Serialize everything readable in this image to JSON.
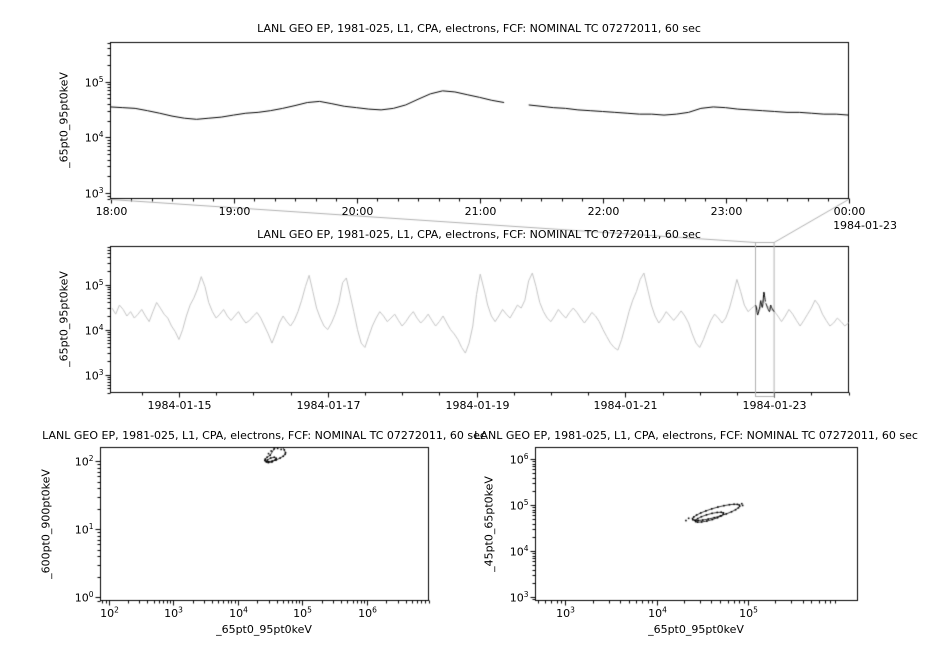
{
  "app": {
    "background": "#ffffff"
  },
  "colors": {
    "axis": "#000000",
    "text": "#000000",
    "zoom_line": "#000000",
    "context_line": "#c4c4c4",
    "connector": "#b0b0b0"
  },
  "chart_data": [
    {
      "id": "zoom-timeseries",
      "type": "line",
      "title": "LANL GEO EP, 1981-025, L1, CPA, electrons, FCF: NOMINAL TC 07272011, 60 sec",
      "ylabel": "_65pt0_95pt0keV",
      "x_axis_date": "1984-01-23",
      "xscale": "linear",
      "yscale": "log",
      "xlim": [
        18,
        24
      ],
      "ylim": [
        800,
        500000
      ],
      "xticks": [
        18,
        19,
        20,
        21,
        22,
        23,
        24
      ],
      "xtick_labels": [
        "18:00",
        "19:00",
        "20:00",
        "21:00",
        "22:00",
        "23:00",
        "00:00"
      ],
      "x_minor_step": 0.16666667,
      "yticks": [
        1000,
        10000,
        100000
      ],
      "line_color": "#000000",
      "x_units": "hour of day, 1984-01-22 18:00 to 1984-01-23 00:00",
      "x_start": 18,
      "x_step": 0.1,
      "values": [
        35000,
        34000,
        33000,
        30000,
        27000,
        24000,
        22000,
        21000,
        22000,
        23000,
        25000,
        27000,
        28000,
        30000,
        33000,
        37000,
        42000,
        44000,
        40000,
        36000,
        34000,
        32000,
        31000,
        33000,
        38000,
        48000,
        60000,
        68000,
        65000,
        58000,
        52000,
        46000,
        42000,
        null,
        38000,
        36000,
        34000,
        33000,
        31000,
        30000,
        29000,
        28000,
        27000,
        26000,
        26000,
        25000,
        26000,
        28000,
        33000,
        35000,
        34000,
        32000,
        31000,
        30000,
        29000,
        28000,
        28000,
        27000,
        26000,
        26000,
        25000
      ]
    },
    {
      "id": "context-timeseries",
      "type": "line",
      "title": "LANL GEO EP, 1981-025, L1, CPA, electrons, FCF: NOMINAL TC 07272011, 60 sec",
      "ylabel": "_65pt0_95pt0keV",
      "xscale": "linear",
      "yscale": "log",
      "xlim": [
        14.08,
        24.0
      ],
      "ylim": [
        400,
        700000
      ],
      "xticks": [
        15,
        17,
        19,
        21,
        23
      ],
      "xtick_labels": [
        "1984-01-15",
        "1984-01-17",
        "1984-01-19",
        "1984-01-21",
        "1984-01-23"
      ],
      "x_minor_step": 0.5,
      "yticks": [
        1000,
        10000,
        100000
      ],
      "line_color": "#c4c4c4",
      "x_units": "day of January 1984",
      "x_start": 14.1,
      "x_step": 0.05,
      "values": [
        30000,
        22000,
        35000,
        28000,
        20000,
        25000,
        18000,
        22000,
        28000,
        20000,
        15000,
        25000,
        40000,
        30000,
        22000,
        18000,
        12000,
        9000,
        6000,
        10000,
        20000,
        35000,
        50000,
        80000,
        150000,
        90000,
        40000,
        25000,
        18000,
        22000,
        28000,
        20000,
        16000,
        20000,
        25000,
        18000,
        14000,
        16000,
        20000,
        24000,
        18000,
        12000,
        8000,
        5000,
        8000,
        14000,
        20000,
        15000,
        12000,
        16000,
        25000,
        45000,
        90000,
        160000,
        70000,
        30000,
        18000,
        12000,
        10000,
        14000,
        22000,
        40000,
        110000,
        140000,
        60000,
        25000,
        10000,
        5000,
        4000,
        7000,
        12000,
        18000,
        25000,
        20000,
        15000,
        18000,
        22000,
        16000,
        12000,
        15000,
        20000,
        25000,
        18000,
        14000,
        17000,
        22000,
        16000,
        12000,
        15000,
        20000,
        14000,
        10000,
        8000,
        6000,
        4000,
        3000,
        5000,
        12000,
        60000,
        170000,
        80000,
        35000,
        20000,
        15000,
        20000,
        28000,
        22000,
        18000,
        25000,
        35000,
        30000,
        45000,
        120000,
        180000,
        90000,
        40000,
        25000,
        18000,
        15000,
        20000,
        28000,
        22000,
        18000,
        24000,
        30000,
        24000,
        18000,
        14000,
        18000,
        24000,
        20000,
        15000,
        10000,
        7000,
        5000,
        4000,
        3500,
        6000,
        12000,
        25000,
        45000,
        70000,
        130000,
        180000,
        80000,
        35000,
        20000,
        14000,
        18000,
        25000,
        20000,
        16000,
        20000,
        26000,
        20000,
        14000,
        8000,
        5000,
        4000,
        6000,
        10000,
        16000,
        22000,
        18000,
        14000,
        18000,
        30000,
        60000,
        130000,
        70000,
        35000,
        25000,
        30000,
        35000,
        25000,
        45000,
        35000,
        28000,
        26000,
        20000,
        15000,
        20000,
        28000,
        22000,
        16000,
        12000,
        16000,
        22000,
        30000,
        45000,
        35000,
        22000,
        16000,
        12000,
        14000,
        18000,
        15000,
        12000,
        14000,
        16000,
        13000
      ],
      "highlight": {
        "color": "#000000",
        "day_start": 22.75,
        "day_end": 23.0,
        "source": "zoom-timeseries values"
      },
      "selection_box": {
        "x0": 22.75,
        "x1": 23.0,
        "color": "#b0b0b0"
      }
    },
    {
      "id": "scatter-600-900",
      "type": "scatter",
      "title": "LANL GEO EP, 1981-025, L1, CPA, electrons, FCF: NOMINAL TC 07272011, 60 sec",
      "xlabel": "_65pt0_95pt0keV",
      "ylabel": "_600pt0_900pt0keV",
      "xscale": "log",
      "yscale": "log",
      "xlim": [
        75,
        9000000
      ],
      "ylim": [
        0.9,
        160
      ],
      "xticks": [
        100,
        1000,
        10000,
        100000,
        1000000
      ],
      "yticks": [
        1,
        10,
        100
      ],
      "marker_color": "#000000",
      "point_groups": [
        [
          [
            55000,
            134
          ],
          [
            52600,
            148
          ],
          [
            48000,
            166
          ],
          [
            42200,
            170
          ],
          [
            36500,
            152
          ],
          [
            31800,
            123
          ],
          [
            28500,
            115
          ],
          [
            26700,
            108
          ],
          [
            26300,
            103
          ],
          [
            27500,
            100
          ],
          [
            30100,
            99
          ],
          [
            34200,
            101
          ],
          [
            39500,
            105
          ],
          [
            45400,
            112
          ],
          [
            50700,
            119
          ],
          [
            54200,
            127
          ]
        ],
        [
          [
            39400,
            111
          ],
          [
            36800,
            115
          ],
          [
            32400,
            112
          ],
          [
            28800,
            105
          ],
          [
            27900,
            98
          ],
          [
            29800,
            96
          ],
          [
            33900,
            98
          ],
          [
            38000,
            105
          ]
        ]
      ],
      "scatter_points": [
        [
          41500,
          155
        ],
        [
          33000,
          142
        ],
        [
          47000,
          150
        ],
        [
          30000,
          130
        ]
      ]
    },
    {
      "id": "scatter-45-65",
      "type": "scatter",
      "title": "LANL GEO EP, 1981-025, L1, CPA, electrons, FCF: NOMINAL TC 07272011, 60 sec",
      "xlabel": "_65pt0_95pt0keV",
      "ylabel": "_45pt0_65pt0keV",
      "xscale": "log",
      "yscale": "log",
      "xlim": [
        470,
        1600000
      ],
      "ylim": [
        850,
        1800000
      ],
      "xticks": [
        1000,
        10000,
        100000
      ],
      "yticks": [
        1000,
        10000,
        100000,
        1000000
      ],
      "marker_color": "#000000",
      "point_groups": [
        [
          [
            81000,
            101000
          ],
          [
            77100,
            104400
          ],
          [
            70800,
            104900
          ],
          [
            63000,
            102700
          ],
          [
            54800,
            97900
          ],
          [
            47000,
            91200
          ],
          [
            40300,
            83500
          ],
          [
            34800,
            75500
          ],
          [
            30500,
            67900
          ],
          [
            27500,
            61200
          ],
          [
            25600,
            55700
          ],
          [
            24800,
            51400
          ],
          [
            25000,
            48500
          ],
          [
            26200,
            46900
          ],
          [
            28600,
            46700
          ],
          [
            32100,
            47700
          ],
          [
            36900,
            50000
          ],
          [
            43000,
            53700
          ],
          [
            50200,
            58700
          ],
          [
            58200,
            64900
          ],
          [
            66400,
            72100
          ],
          [
            73600,
            80000
          ],
          [
            79100,
            88000
          ],
          [
            81600,
            95300
          ]
        ],
        [
          [
            54100,
            68400
          ],
          [
            51200,
            70400
          ],
          [
            46300,
            69700
          ],
          [
            40600,
            66600
          ],
          [
            35300,
            61800
          ],
          [
            31000,
            56300
          ],
          [
            28200,
            51200
          ],
          [
            26700,
            47000
          ],
          [
            26900,
            44100
          ],
          [
            28200,
            42900
          ],
          [
            31200,
            43300
          ],
          [
            35600,
            45300
          ],
          [
            40900,
            48900
          ],
          [
            46600,
            53600
          ],
          [
            51400,
            59000
          ],
          [
            54100,
            64300
          ]
        ]
      ],
      "scatter_points": [
        [
          22500,
          52000
        ],
        [
          21000,
          46500
        ],
        [
          88000,
          99000
        ],
        [
          86000,
          108000
        ]
      ]
    }
  ]
}
